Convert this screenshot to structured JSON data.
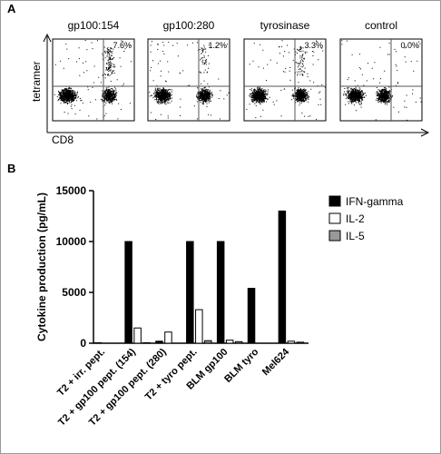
{
  "panel_a": {
    "letter": "A",
    "y_label": "tetramer",
    "x_label": "CD8",
    "plots": [
      {
        "title": "gp100:154",
        "percent": "7.6%"
      },
      {
        "title": "gp100:280",
        "percent": "1.2%"
      },
      {
        "title": "tyrosinase",
        "percent": "3.3%"
      },
      {
        "title": "control",
        "percent": "0.0%"
      }
    ]
  },
  "chart_data": {
    "type": "bar",
    "panel_letter": "B",
    "ylabel": "Cytokine production (pg/mL)",
    "categories": [
      "T2 + irr. pept.",
      "T2 + gp100 pept. (154)",
      "T2 + gp100 pept. (280)",
      "T2 + tyro pept.",
      "BLM gp100",
      "BLM tyro",
      "Mel624"
    ],
    "series": [
      {
        "name": "IFN-gamma",
        "color": "#000000",
        "values": [
          50,
          10000,
          200,
          10000,
          10000,
          5400,
          13000
        ]
      },
      {
        "name": "IL-2",
        "color": "#ffffff",
        "values": [
          0,
          1500,
          1100,
          3300,
          300,
          0,
          200
        ]
      },
      {
        "name": "IL-5",
        "color": "#999999",
        "values": [
          0,
          50,
          0,
          250,
          150,
          0,
          100
        ]
      }
    ],
    "ylim": [
      0,
      15000
    ],
    "yticks": [
      0,
      5000,
      10000,
      15000
    ],
    "legend": "right"
  }
}
